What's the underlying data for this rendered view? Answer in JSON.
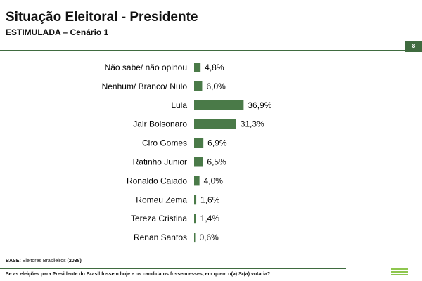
{
  "header": {
    "title": "Situação Eleitoral - Presidente",
    "subtitle": "ESTIMULADA – Cenário 1",
    "page_number": "8"
  },
  "footer": {
    "base_label": "BASE:",
    "base_text": "Eleitores Brasileiros",
    "base_count": "(2038)",
    "question": "Se as eleições para Presidente do Brasil fossem hoje e os candidatos fossem esses, em quem o(a) Sr(a) votaria?"
  },
  "colors": {
    "bar": "#4a7a48",
    "accent": "#3f6b3f",
    "logo": "#8ec64e"
  },
  "chart_data": {
    "type": "bar",
    "orientation": "horizontal",
    "categories": [
      "Não sabe/ não opinou",
      "Nenhum/ Branco/ Nulo",
      "Lula",
      "Jair Bolsonaro",
      "Ciro Gomes",
      "Ratinho Junior",
      "Ronaldo Caiado",
      "Romeu Zema",
      "Tereza Cristina",
      "Renan Santos"
    ],
    "values": [
      4.8,
      6.0,
      36.9,
      31.3,
      6.9,
      6.5,
      4.0,
      1.6,
      1.4,
      0.6
    ],
    "labels": [
      "4,8%",
      "6,0%",
      "36,9%",
      "31,3%",
      "6,9%",
      "6,5%",
      "4,0%",
      "1,6%",
      "1,4%",
      "0,6%"
    ],
    "xlim": [
      0,
      40
    ],
    "grid": false,
    "legend": "none"
  }
}
